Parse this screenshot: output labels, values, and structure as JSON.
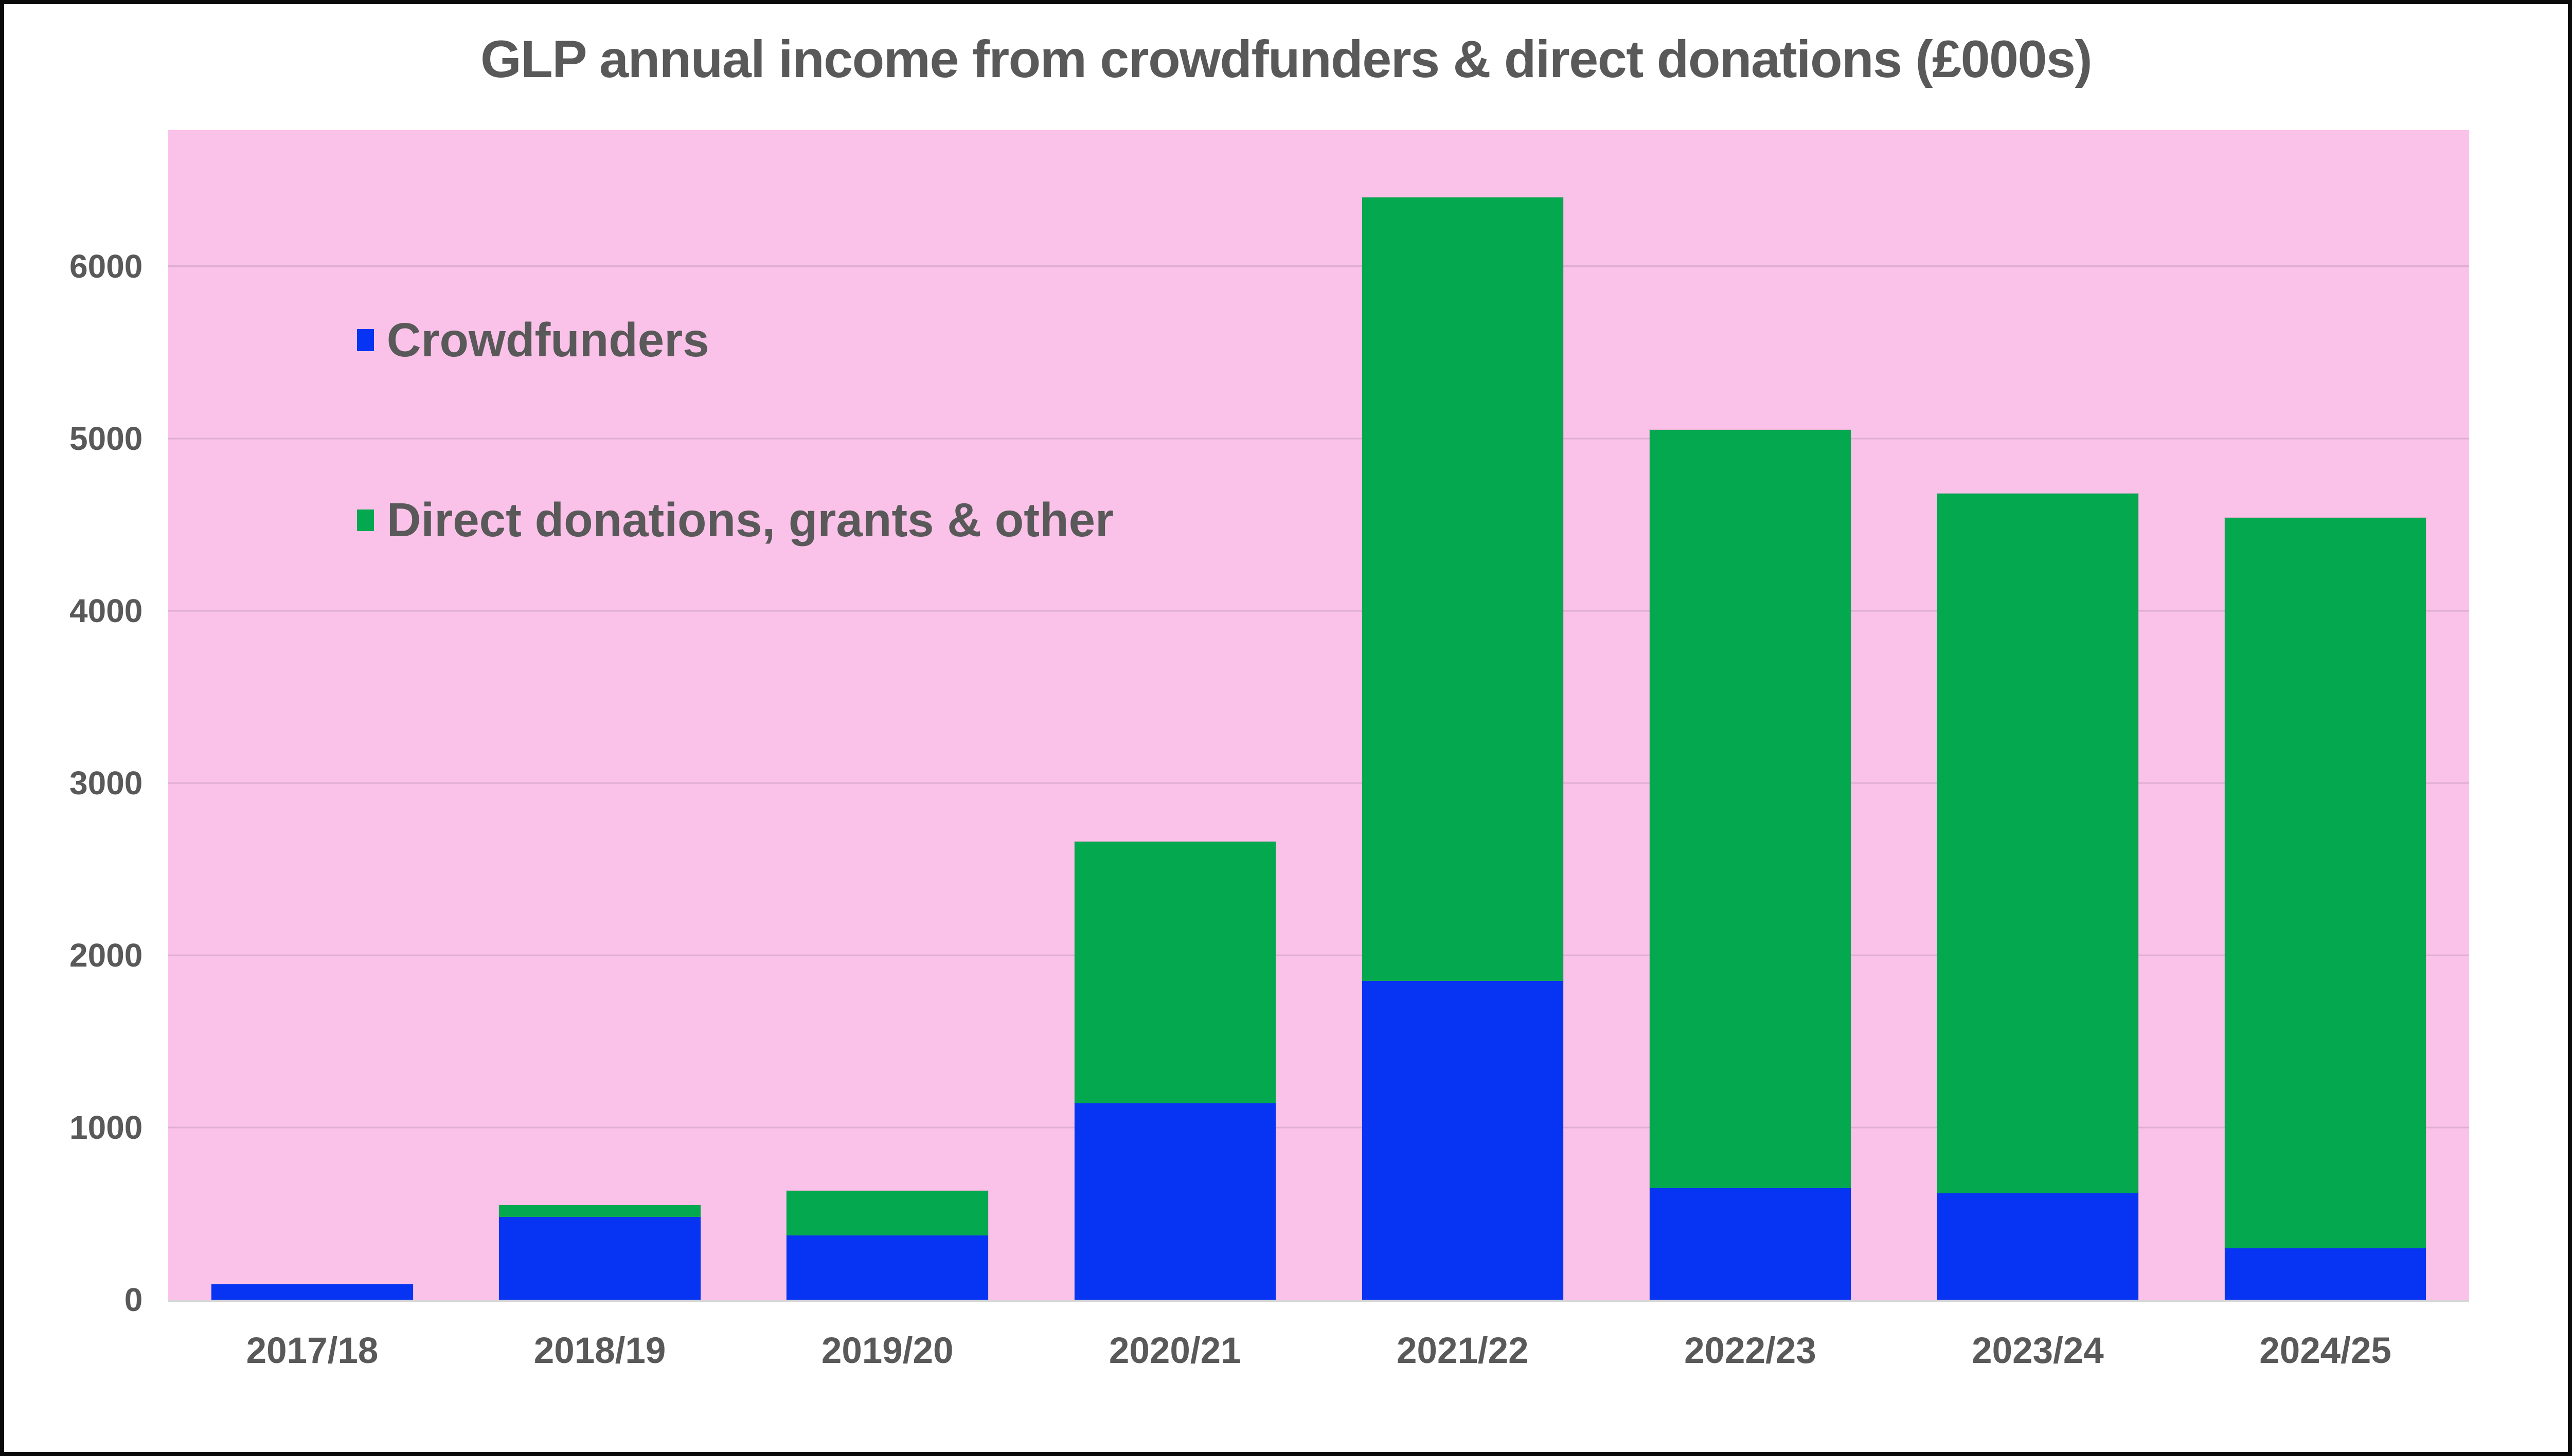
{
  "title": "GLP annual income from crowdfunders & direct donations (£000s)",
  "chart_data": {
    "type": "bar",
    "stacked": true,
    "title": "GLP annual income from crowdfunders & direct donations (£000s)",
    "categories": [
      "2017/18",
      "2018/19",
      "2019/20",
      "2020/21",
      "2021/22",
      "2022/23",
      "2023/24",
      "2024/25"
    ],
    "series": [
      {
        "name": "Crowdfunders",
        "color": "#0734F2",
        "values": [
          90,
          480,
          375,
          1140,
          1850,
          650,
          620,
          300
        ]
      },
      {
        "name": "Direct donations, grants & other",
        "color": "#04A84F",
        "values": [
          0,
          70,
          260,
          1520,
          4550,
          4400,
          4060,
          4240
        ]
      }
    ],
    "totals": [
      90,
      550,
      635,
      2660,
      6400,
      5050,
      4680,
      4540
    ],
    "xlabel": "",
    "ylabel": "",
    "yticks": [
      0,
      1000,
      2000,
      3000,
      4000,
      5000,
      6000
    ],
    "ylim": [
      0,
      6790
    ],
    "grid": true,
    "legend_position": "top-left-inside",
    "plot_bg": "#FBC2E9"
  },
  "colors": {
    "plot_background": "#FBC2E9",
    "gridline": "#DEAFD2",
    "text": "#595959",
    "crowdfunders_blue": "#0734F2",
    "donations_green": "#04A84F",
    "axis_line": "#D6D6D6",
    "frame": "#0A0A0A",
    "page_background": "#FFFFFF"
  }
}
